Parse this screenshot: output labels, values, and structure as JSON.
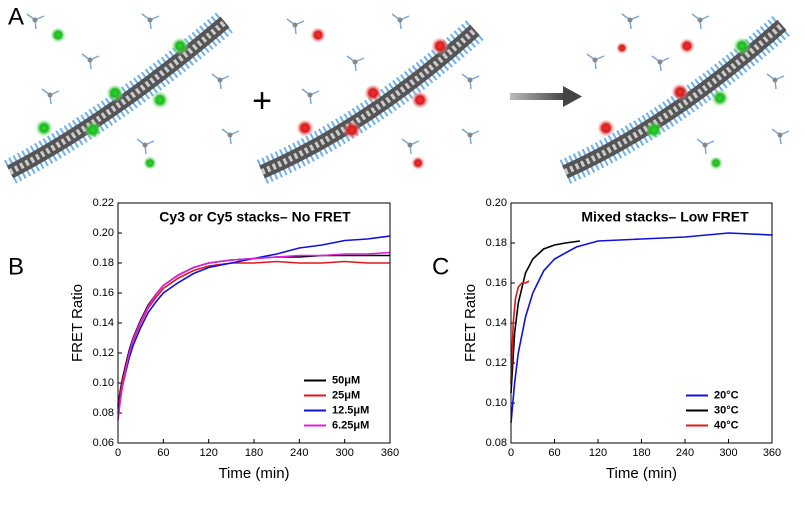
{
  "panel_a": {
    "label": "A",
    "plus": "+",
    "left_caption": "Cy3 or Cy5 stacks– No FRET",
    "right_caption": "Mixed stacks– Low FRET"
  },
  "chart_data": [
    {
      "type": "line",
      "panel_label": "B",
      "xlabel": "Time (min)",
      "ylabel": "FRET Ratio",
      "xlim": [
        0,
        360
      ],
      "xticks": [
        0,
        60,
        120,
        180,
        240,
        300,
        360
      ],
      "ylim": [
        0.06,
        0.22
      ],
      "yticks": [
        0.06,
        0.08,
        {
          "value": 0.1,
          "label": "0.10"
        },
        0.12,
        0.14,
        0.16,
        0.18,
        {
          "value": 0.2,
          "label": "0.20"
        },
        0.22
      ],
      "legend": "lower right",
      "series": [
        {
          "name": "50μM",
          "color": "#000000",
          "x": [
            0,
            3,
            6,
            10,
            15,
            20,
            30,
            40,
            50,
            60,
            80,
            100,
            120,
            150,
            180,
            210,
            240,
            270,
            300,
            330,
            360
          ],
          "values": [
            0.085,
            0.095,
            0.103,
            0.112,
            0.122,
            0.13,
            0.142,
            0.152,
            0.159,
            0.165,
            0.172,
            0.177,
            0.18,
            0.182,
            0.183,
            0.184,
            0.184,
            0.185,
            0.185,
            0.185,
            0.185
          ]
        },
        {
          "name": "25μM",
          "color": "#e0161b",
          "x": [
            0,
            3,
            6,
            10,
            15,
            20,
            30,
            40,
            50,
            60,
            80,
            100,
            120,
            150,
            180,
            210,
            240,
            270,
            300,
            330,
            360
          ],
          "values": [
            0.083,
            0.093,
            0.101,
            0.11,
            0.12,
            0.128,
            0.14,
            0.15,
            0.157,
            0.163,
            0.17,
            0.175,
            0.178,
            0.18,
            0.18,
            0.181,
            0.18,
            0.18,
            0.181,
            0.18,
            0.18
          ]
        },
        {
          "name": "12.5μM",
          "color": "#1010e0",
          "x": [
            0,
            3,
            6,
            10,
            15,
            20,
            30,
            40,
            50,
            60,
            80,
            100,
            120,
            150,
            180,
            210,
            240,
            270,
            300,
            330,
            360
          ],
          "values": [
            0.08,
            0.09,
            0.098,
            0.107,
            0.117,
            0.125,
            0.137,
            0.147,
            0.154,
            0.16,
            0.167,
            0.173,
            0.177,
            0.18,
            0.183,
            0.186,
            0.19,
            0.192,
            0.195,
            0.196,
            0.198
          ]
        },
        {
          "name": "6.25μM",
          "color": "#e020e0",
          "x": [
            0,
            3,
            6,
            10,
            15,
            20,
            30,
            40,
            50,
            60,
            80,
            100,
            120,
            150,
            180,
            210,
            240,
            270,
            300,
            330,
            360
          ],
          "values": [
            0.075,
            0.088,
            0.098,
            0.109,
            0.12,
            0.129,
            0.141,
            0.151,
            0.159,
            0.165,
            0.172,
            0.177,
            0.18,
            0.182,
            0.183,
            0.184,
            0.185,
            0.185,
            0.186,
            0.186,
            0.187
          ]
        }
      ]
    },
    {
      "type": "line",
      "panel_label": "C",
      "xlabel": "Time (min)",
      "ylabel": "FRET Ratio",
      "xlim": [
        0,
        360
      ],
      "xticks": [
        0,
        60,
        120,
        180,
        240,
        300,
        360
      ],
      "ylim": [
        0.08,
        0.2
      ],
      "yticks": [
        0.08,
        {
          "value": 0.1,
          "label": "0.10"
        },
        0.12,
        0.14,
        0.16,
        0.18,
        {
          "value": 0.2,
          "label": "0.20"
        }
      ],
      "legend": "lower right",
      "series": [
        {
          "name": "20°C",
          "color": "#1010e0",
          "x": [
            0,
            5,
            10,
            20,
            30,
            45,
            60,
            90,
            120,
            180,
            240,
            300,
            360
          ],
          "values": [
            0.09,
            0.11,
            0.125,
            0.143,
            0.155,
            0.166,
            0.172,
            0.178,
            0.181,
            0.182,
            0.183,
            0.185,
            0.184
          ]
        },
        {
          "name": "30°C",
          "color": "#000000",
          "x": [
            0,
            5,
            10,
            20,
            30,
            45,
            60,
            75,
            95
          ],
          "values": [
            0.105,
            0.135,
            0.15,
            0.165,
            0.172,
            0.177,
            0.179,
            0.18,
            0.181
          ]
        },
        {
          "name": "40°C",
          "color": "#e0161b",
          "x": [
            0,
            3,
            6,
            10,
            15,
            20,
            25
          ],
          "values": [
            0.11,
            0.14,
            0.152,
            0.158,
            0.16,
            0.16,
            0.161
          ]
        }
      ]
    }
  ]
}
